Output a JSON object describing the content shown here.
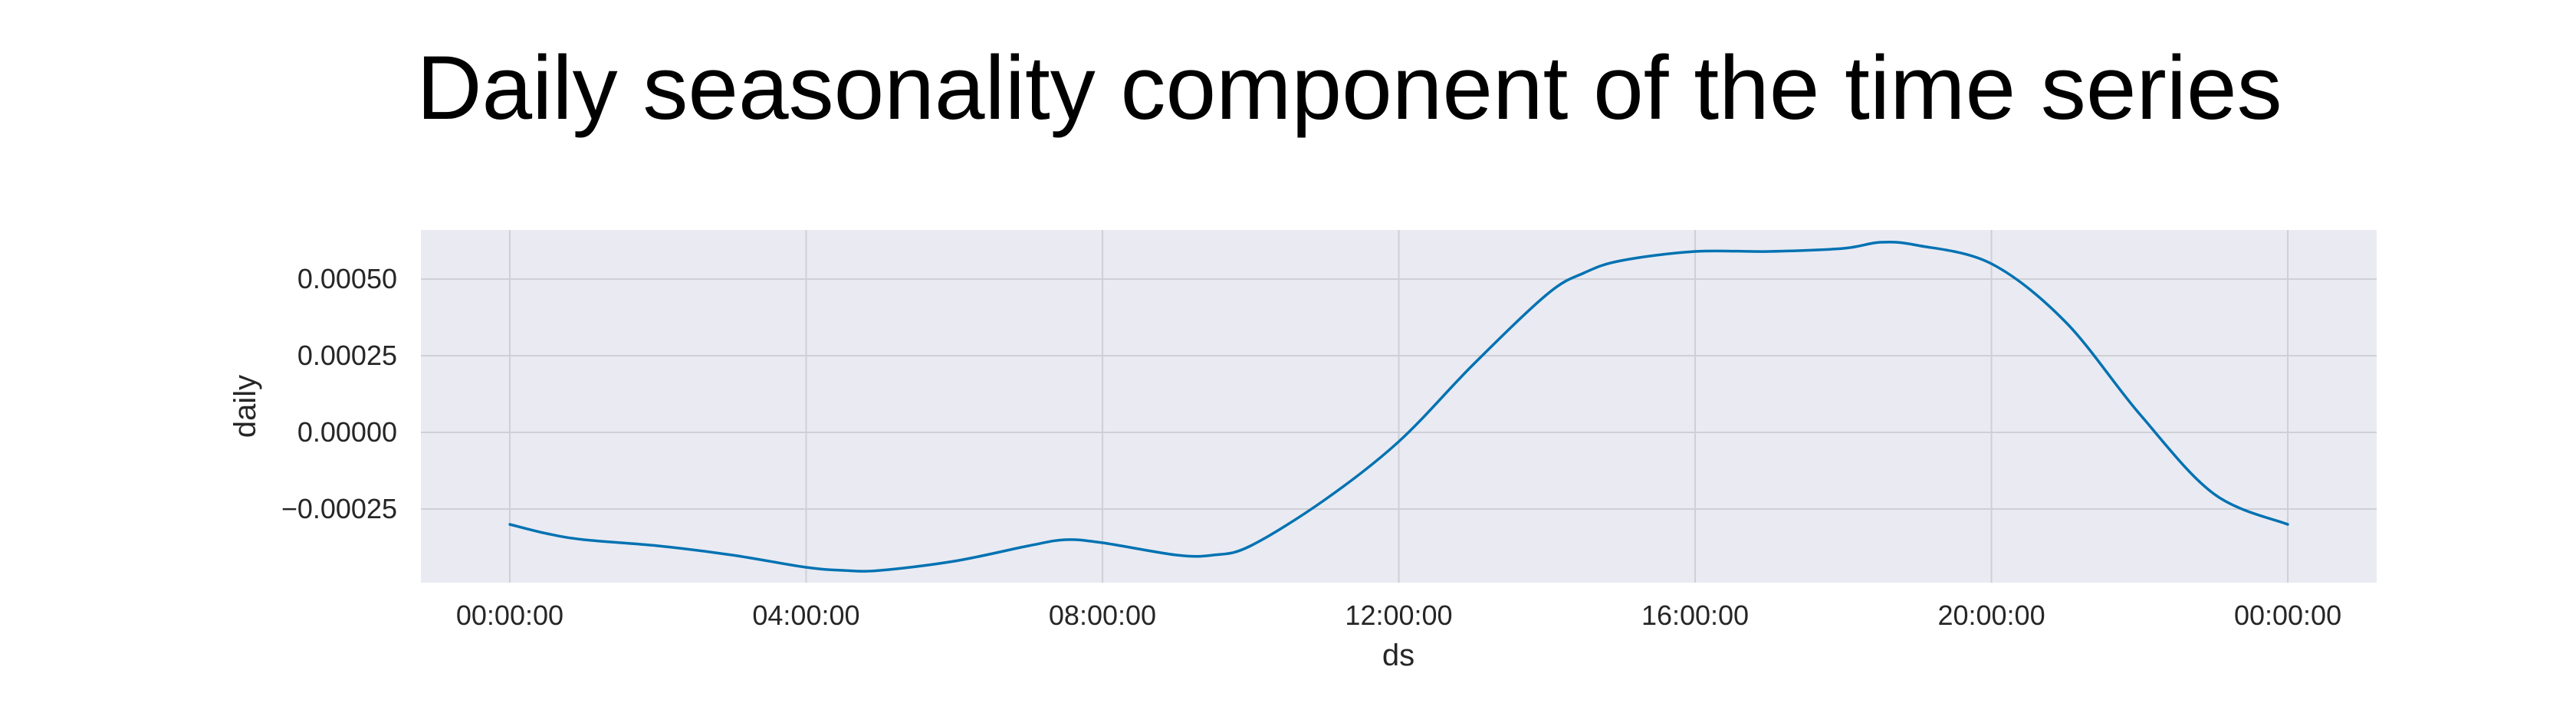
{
  "chart_data": {
    "type": "line",
    "title": "Daily seasonality component of the time series",
    "xlabel": "ds",
    "ylabel": "daily",
    "x_ticks": [
      "00:00:00",
      "04:00:00",
      "08:00:00",
      "12:00:00",
      "16:00:00",
      "20:00:00",
      "00:00:00"
    ],
    "y_ticks": [
      "0.00050",
      "0.00025",
      "0.00000",
      "−0.00025"
    ],
    "y_tick_values": [
      0.0005,
      0.00025,
      0.0,
      -0.00025
    ],
    "xlim_hours": [
      -1.2,
      25.2
    ],
    "ylim": [
      -0.00049,
      0.00066
    ],
    "grid": true,
    "series": [
      {
        "x_hours": [
          0,
          0.5,
          1,
          2,
          3,
          4,
          4.5,
          5,
          6,
          7,
          7.5,
          8,
          9,
          9.5,
          10,
          11,
          12,
          13,
          14,
          14.5,
          15,
          16,
          17,
          18,
          18.5,
          19,
          20,
          21,
          22,
          23,
          24
        ],
        "y": [
          -0.0003,
          -0.00033,
          -0.00035,
          -0.00037,
          -0.0004,
          -0.00044,
          -0.00045,
          -0.00045,
          -0.00042,
          -0.00037,
          -0.00035,
          -0.00036,
          -0.0004,
          -0.0004,
          -0.00037,
          -0.00022,
          -3e-05,
          0.00022,
          0.00045,
          0.00052,
          0.00056,
          0.00059,
          0.00059,
          0.0006,
          0.00062,
          0.00061,
          0.00055,
          0.00036,
          6e-05,
          -0.0002,
          -0.0003
        ]
      }
    ],
    "colors": {
      "line": "#0072b2",
      "plot_background": "#eaeaf2",
      "grid": "#cfcfd6",
      "page_background": "#ffffff"
    }
  }
}
